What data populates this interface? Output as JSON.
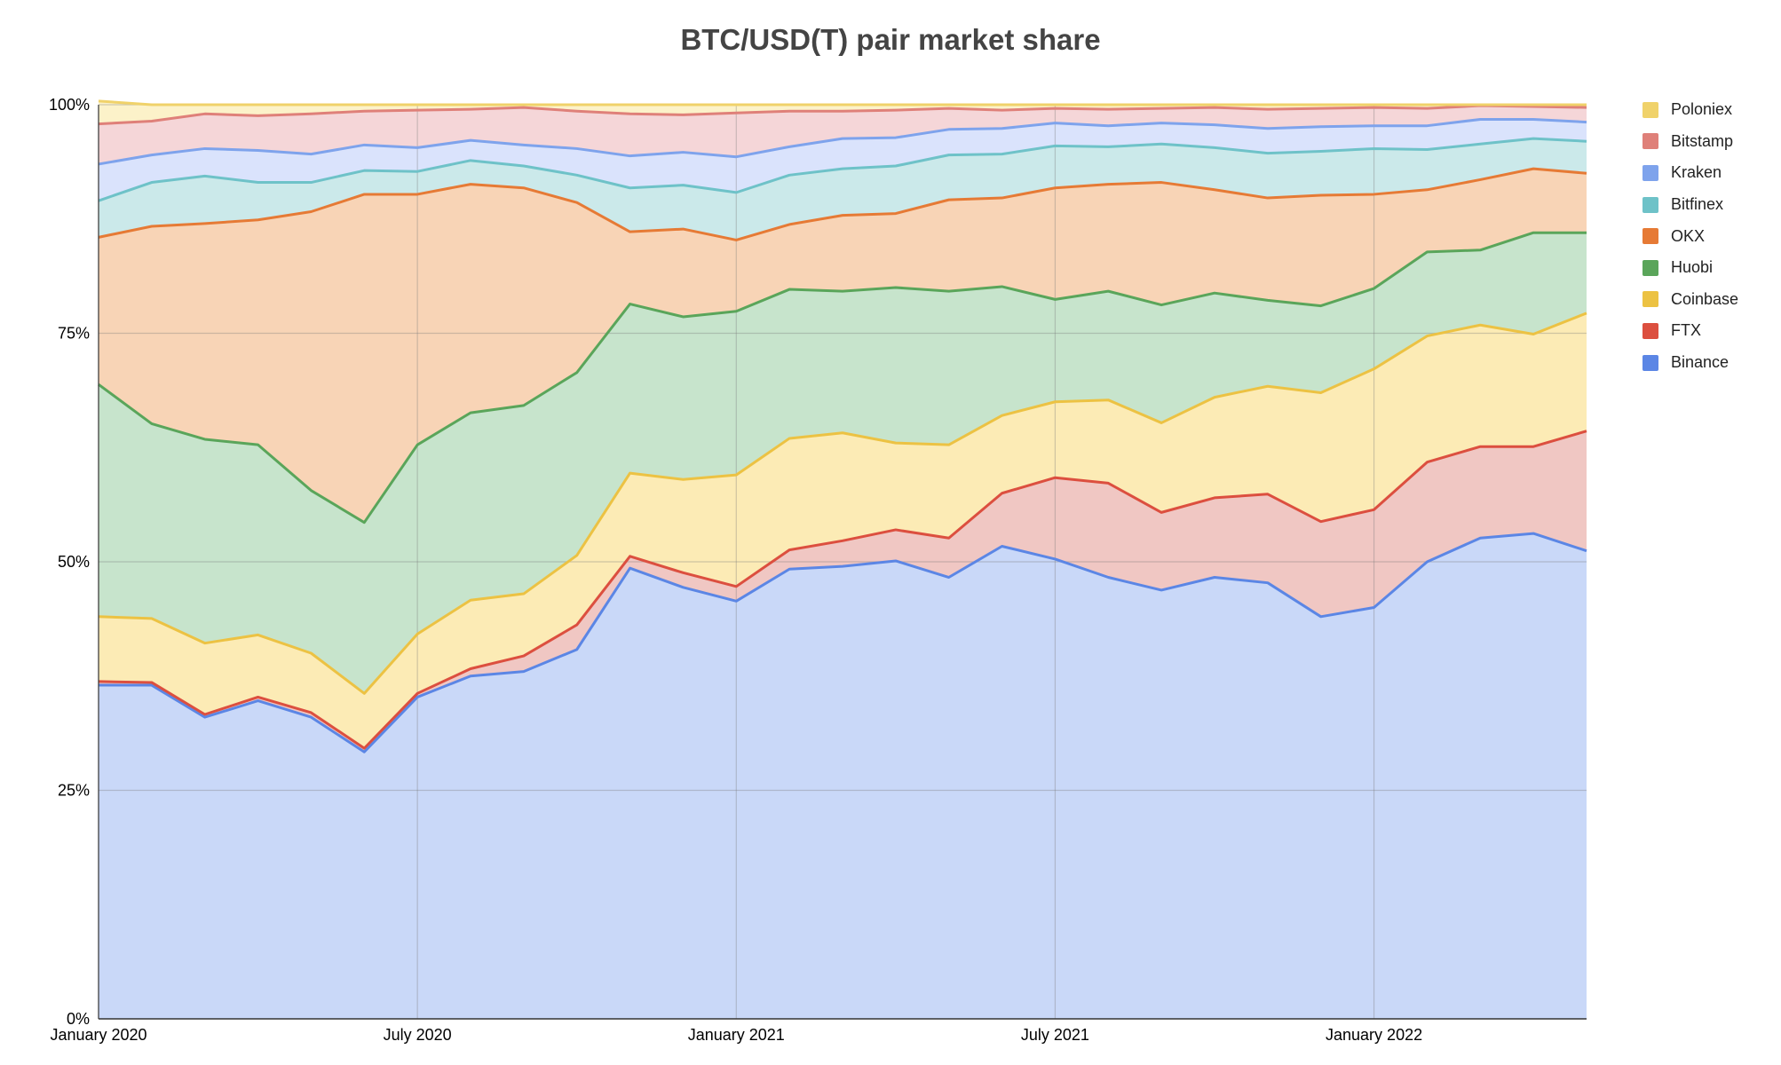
{
  "title": "BTC/USD(T) pair market share",
  "chart_data": {
    "type": "area",
    "stacked": true,
    "title": "BTC/USD(T) pair market share",
    "xlabel": "",
    "ylabel": "",
    "ylim": [
      0,
      100
    ],
    "y_unit": "%",
    "y_ticks": [
      {
        "value": 0,
        "label": "0%"
      },
      {
        "value": 25,
        "label": "25%"
      },
      {
        "value": 50,
        "label": "50%"
      },
      {
        "value": 75,
        "label": "75%"
      },
      {
        "value": 100,
        "label": "100%"
      }
    ],
    "x": [
      "2020-01",
      "2020-02",
      "2020-03",
      "2020-04",
      "2020-05",
      "2020-06",
      "2020-07",
      "2020-08",
      "2020-09",
      "2020-10",
      "2020-11",
      "2020-12",
      "2021-01",
      "2021-02",
      "2021-03",
      "2021-04",
      "2021-05",
      "2021-06",
      "2021-07",
      "2021-08",
      "2021-09",
      "2021-10",
      "2021-11",
      "2021-12",
      "2022-01",
      "2022-02",
      "2022-03",
      "2022-04",
      "2022-05"
    ],
    "x_ticks": [
      {
        "value": "2020-01",
        "label": "January 2020"
      },
      {
        "value": "2020-07",
        "label": "July 2020"
      },
      {
        "value": "2021-01",
        "label": "January 2021"
      },
      {
        "value": "2021-07",
        "label": "July 2021"
      },
      {
        "value": "2022-01",
        "label": "January 2022"
      }
    ],
    "grid": true,
    "legend_position": "right",
    "series": [
      {
        "name": "Binance",
        "line_color": "#5b86e5",
        "fill_color": "#c9d8f8",
        "values": [
          36.5,
          36.5,
          33,
          34.8,
          33,
          29.2,
          35.2,
          37.5,
          38,
          40.4,
          49.3,
          47.2,
          45.7,
          49.2,
          49.5,
          50.1,
          48.3,
          51.7,
          50.3,
          48.3,
          46.9,
          48.3,
          47.7,
          44,
          45,
          50,
          52.6,
          53.1,
          51.2
        ]
      },
      {
        "name": "FTX",
        "line_color": "#dc4f3f",
        "fill_color": "#f0c7c3",
        "values": [
          0.4,
          0.3,
          0.3,
          0.4,
          0.5,
          0.4,
          0.4,
          0.8,
          1.7,
          2.7,
          1.3,
          1.6,
          1.6,
          2.1,
          2.8,
          3.4,
          4.3,
          5.8,
          8.9,
          10.3,
          8.5,
          8.7,
          9.7,
          10.4,
          10.7,
          10.9,
          10,
          9.5,
          13.1
        ]
      },
      {
        "name": "Coinbase",
        "line_color": "#ecc243",
        "fill_color": "#fcebb5",
        "values": [
          7.1,
          7,
          7.8,
          6.8,
          6.5,
          6,
          6.5,
          7.5,
          6.8,
          7.6,
          9.1,
          10.2,
          12.2,
          12.2,
          11.8,
          9.5,
          10.2,
          8.5,
          8.3,
          9.1,
          9.8,
          11,
          11.8,
          14.1,
          15.4,
          13.8,
          13.3,
          12.3,
          12.9
        ]
      },
      {
        "name": "Huobi",
        "line_color": "#5aa55a",
        "fill_color": "#c7e4cc",
        "values": [
          25.4,
          21.3,
          22.3,
          20.8,
          17.8,
          18.7,
          20.7,
          20.5,
          20.6,
          20,
          18.5,
          17.8,
          17.9,
          16.3,
          15.5,
          17,
          16.8,
          14.1,
          11.2,
          11.9,
          12.9,
          11.4,
          9.4,
          9.5,
          8.8,
          9.2,
          8.2,
          11.1,
          8.8
        ]
      },
      {
        "name": "OKX",
        "line_color": "#e67a35",
        "fill_color": "#f8d4b6",
        "values": [
          16.1,
          21.6,
          23.6,
          24.6,
          30.5,
          35.9,
          27.4,
          25,
          23.8,
          18.6,
          7.9,
          9.6,
          7.8,
          7.1,
          8.3,
          8.1,
          10,
          9.7,
          12.2,
          11.7,
          13.4,
          11.3,
          11.2,
          12.1,
          10.3,
          6.8,
          7.7,
          7,
          6.5
        ]
      },
      {
        "name": "Bitfinex",
        "line_color": "#6ec2c8",
        "fill_color": "#cbe9ea",
        "values": [
          4,
          4.8,
          5.2,
          4.1,
          3.2,
          2.6,
          2.5,
          2.6,
          2.4,
          3,
          4.8,
          4.8,
          5.2,
          5.4,
          5.1,
          5.2,
          4.9,
          4.8,
          4.6,
          4.1,
          4.2,
          4.6,
          4.9,
          4.8,
          5,
          4.4,
          3.9,
          3.3,
          3.5
        ]
      },
      {
        "name": "Kraken",
        "line_color": "#7ea3ec",
        "fill_color": "#dae3fc",
        "values": [
          4,
          3,
          3,
          3.5,
          3.1,
          2.8,
          2.6,
          2.2,
          2.3,
          2.9,
          3.5,
          3.6,
          3.9,
          3.1,
          3.3,
          3.1,
          2.8,
          2.8,
          2.5,
          2.3,
          2.3,
          2.5,
          2.7,
          2.7,
          2.5,
          2.6,
          2.7,
          2.1,
          2.1
        ]
      },
      {
        "name": "Bitstamp",
        "line_color": "#df8079",
        "fill_color": "#f5d6d8",
        "values": [
          4.4,
          3.7,
          3.8,
          3.8,
          4.4,
          3.7,
          4.1,
          3.4,
          4.1,
          4.1,
          4.6,
          4.1,
          4.8,
          3.9,
          3,
          3,
          2.3,
          2,
          1.6,
          1.8,
          1.6,
          1.9,
          2.1,
          2,
          2,
          1.9,
          1.5,
          1.4,
          1.6
        ]
      },
      {
        "name": "Poloniex",
        "line_color": "#f0d26a",
        "fill_color": "#fcf2c9",
        "values": [
          2.5,
          1.8,
          1,
          1.2,
          1,
          0.7,
          0.6,
          0.5,
          0.3,
          0.7,
          1,
          1.1,
          0.9,
          0.7,
          0.7,
          0.6,
          0.4,
          0.6,
          0.4,
          0.5,
          0.4,
          0.3,
          0.5,
          0.4,
          0.3,
          0.4,
          0.1,
          0.2,
          0.3
        ]
      }
    ]
  }
}
